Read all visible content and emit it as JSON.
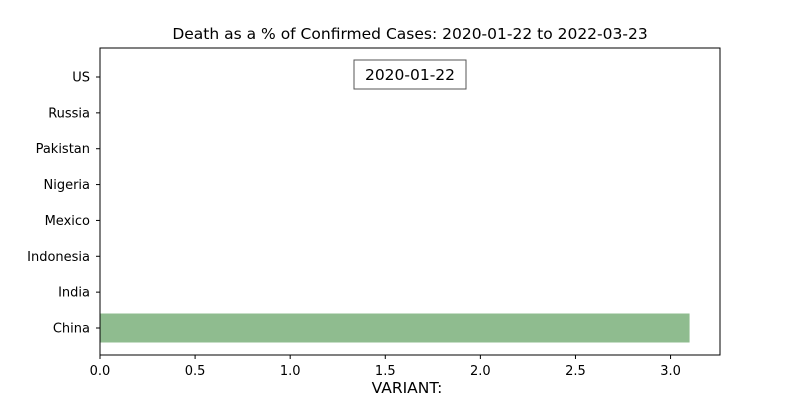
{
  "chart_data": {
    "type": "bar",
    "orientation": "horizontal",
    "title": "Death as a % of Confirmed Cases: 2020-01-22 to 2022-03-23",
    "date_label": "2020-01-22",
    "xlabel": "VARIANT:",
    "ylabel": "",
    "categories": [
      "China",
      "India",
      "Indonesia",
      "Mexico",
      "Nigeria",
      "Pakistan",
      "Russia",
      "US"
    ],
    "values": [
      3.1,
      0,
      0,
      0,
      0,
      0,
      0,
      0
    ],
    "xlim": [
      0,
      3.26
    ],
    "xticks": [
      0.0,
      0.5,
      1.0,
      1.5,
      2.0,
      2.5,
      3.0
    ],
    "xtick_labels": [
      "0.0",
      "0.5",
      "1.0",
      "1.5",
      "2.0",
      "2.5",
      "3.0"
    ],
    "bar_color": "#8fbc8f",
    "grid": false
  }
}
